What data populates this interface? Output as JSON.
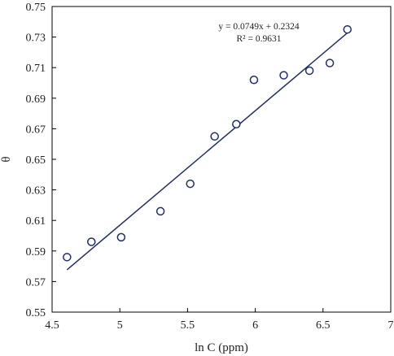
{
  "chart_data": {
    "type": "scatter",
    "xlabel": "ln C (ppm)",
    "ylabel": "θ",
    "xlim": [
      4.5,
      7
    ],
    "ylim": [
      0.55,
      0.75
    ],
    "xticks": [
      4.5,
      5,
      5.5,
      6,
      6.5,
      7
    ],
    "xtick_labels": [
      "4.5",
      "5",
      "5.5",
      "6",
      "6.5",
      "7"
    ],
    "yticks": [
      0.55,
      0.57,
      0.59,
      0.61,
      0.63,
      0.65,
      0.67,
      0.69,
      0.71,
      0.73,
      0.75
    ],
    "ytick_labels": [
      "0.55",
      "0.57",
      "0.59",
      "0.61",
      "0.63",
      "0.65",
      "0.67",
      "0.69",
      "0.71",
      "0.73",
      "0.75"
    ],
    "grid": false,
    "points": [
      {
        "x": 4.61,
        "y": 0.586
      },
      {
        "x": 4.79,
        "y": 0.596
      },
      {
        "x": 5.01,
        "y": 0.599
      },
      {
        "x": 5.3,
        "y": 0.616
      },
      {
        "x": 5.52,
        "y": 0.634
      },
      {
        "x": 5.7,
        "y": 0.665
      },
      {
        "x": 5.86,
        "y": 0.673
      },
      {
        "x": 5.99,
        "y": 0.702
      },
      {
        "x": 6.21,
        "y": 0.705
      },
      {
        "x": 6.4,
        "y": 0.708
      },
      {
        "x": 6.55,
        "y": 0.713
      },
      {
        "x": 6.68,
        "y": 0.735
      }
    ],
    "trendline": {
      "slope": 0.0749,
      "intercept": 0.2324,
      "x_range": [
        4.61,
        6.68
      ],
      "equation_label": "y = 0.0749x + 0.2324",
      "r2_label": "R² = 0.9631"
    },
    "colors": {
      "marker": "#1f2d6b",
      "line": "#1f2d6b",
      "axis": "#000000"
    }
  }
}
